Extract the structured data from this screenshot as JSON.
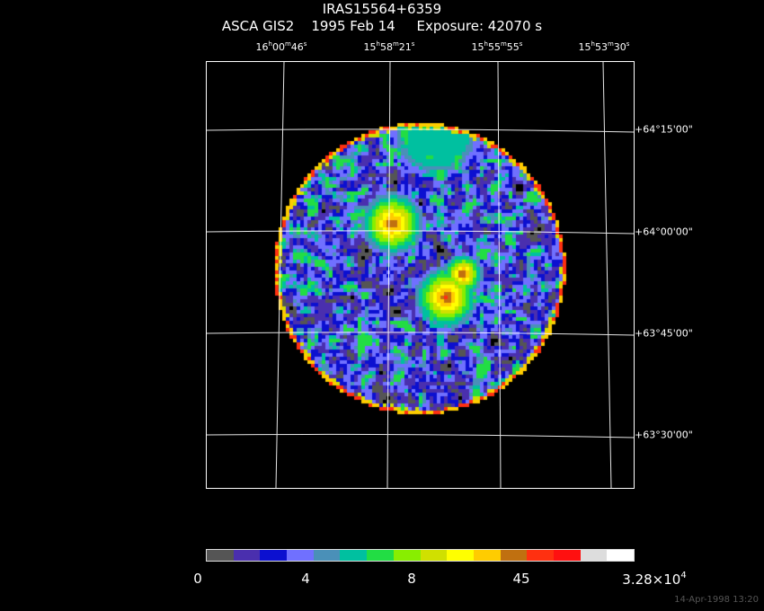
{
  "title": {
    "object": "IRAS15564+6359",
    "subtitle": "ASCA GIS2    1995 Feb 14     Exposure: 42070 s"
  },
  "ra_labels": [
    {
      "h": "16",
      "m": "00",
      "s": "46"
    },
    {
      "h": "15",
      "m": "58",
      "s": "21"
    },
    {
      "h": "15",
      "m": "55",
      "s": "55"
    },
    {
      "h": "15",
      "m": "53",
      "s": "30"
    }
  ],
  "dec_labels": [
    "+64°15'00\"",
    "+64°00'00\"",
    "+63°45'00\"",
    "+63°30'00\""
  ],
  "colorbar": {
    "colors": [
      "#555555",
      "#4a2fae",
      "#0c10d0",
      "#7070ff",
      "#4a90b8",
      "#00c0a0",
      "#22dd44",
      "#88ee00",
      "#d0e000",
      "#ffff00",
      "#ffcc00",
      "#c07010",
      "#ff3010",
      "#ff1010",
      "#dddddd",
      "#ffffff"
    ],
    "labels": [
      "0",
      "4",
      "8",
      "45"
    ],
    "max_label": {
      "base": "3.28×10",
      "exp": "4"
    }
  },
  "sources": [
    {
      "name": "bright-source-1",
      "level": "high"
    },
    {
      "name": "bright-source-2",
      "level": "high"
    }
  ],
  "timestamp": "14-Apr-1998 13:20"
}
